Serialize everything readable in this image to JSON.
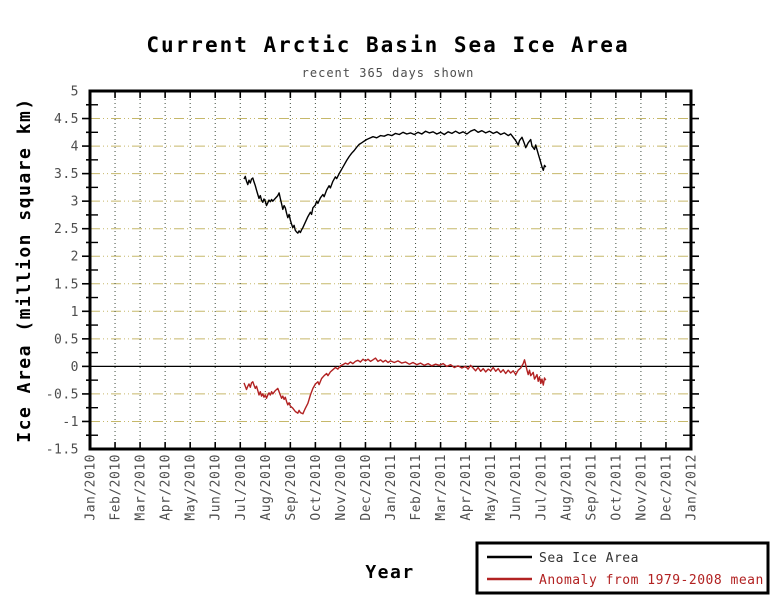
{
  "chart_data": {
    "type": "line",
    "title": "Current Arctic Basin Sea Ice Area",
    "subtitle": "recent 365 days shown",
    "xlabel": "Year",
    "ylabel": "Ice Area (million square km)",
    "x_unit": "months since Jan/2010",
    "xlim": [
      0,
      24
    ],
    "ylim": [
      -1.5,
      5
    ],
    "grid": true,
    "legend_position": "bottom-right",
    "zero_line": true,
    "x_tick_labels": [
      "Jan/2010",
      "Feb/2010",
      "Mar/2010",
      "Apr/2010",
      "May/2010",
      "Jun/2010",
      "Jul/2010",
      "Aug/2010",
      "Sep/2010",
      "Oct/2010",
      "Nov/2010",
      "Dec/2010",
      "Jan/2011",
      "Feb/2011",
      "Mar/2011",
      "Apr/2011",
      "May/2011",
      "Jun/2011",
      "Jul/2011",
      "Aug/2011",
      "Sep/2011",
      "Oct/2011",
      "Nov/2011",
      "Dec/2011",
      "Jan/2012"
    ],
    "y_tick_values": [
      5,
      4.5,
      4,
      3.5,
      3,
      2.5,
      2,
      1.5,
      1,
      0.5,
      0,
      -0.5,
      -1,
      -1.5
    ],
    "y_tick_labels": [
      "5",
      "4.5",
      "4",
      "3.5",
      "3",
      "2.5",
      "2",
      "1.5",
      "1",
      "0.5",
      "0",
      "-0.5",
      "-1",
      "-1.5"
    ],
    "colors": {
      "horizontal_grid": "#c6b86a",
      "vertical_grid": "#3e4d3e",
      "border": "#000000",
      "tick_text": "#4d4d4d"
    },
    "series": [
      {
        "name": "Sea Ice Area",
        "color": "#000000",
        "points": [
          [
            6.15,
            3.4
          ],
          [
            6.2,
            3.45
          ],
          [
            6.25,
            3.36
          ],
          [
            6.3,
            3.3
          ],
          [
            6.35,
            3.38
          ],
          [
            6.4,
            3.33
          ],
          [
            6.45,
            3.4
          ],
          [
            6.5,
            3.42
          ],
          [
            6.55,
            3.35
          ],
          [
            6.6,
            3.28
          ],
          [
            6.65,
            3.2
          ],
          [
            6.7,
            3.12
          ],
          [
            6.75,
            3.05
          ],
          [
            6.8,
            3.1
          ],
          [
            6.85,
            3.02
          ],
          [
            6.9,
            2.98
          ],
          [
            6.95,
            3.04
          ],
          [
            7.0,
            3.0
          ],
          [
            7.05,
            2.92
          ],
          [
            7.1,
            2.97
          ],
          [
            7.15,
            3.02
          ],
          [
            7.2,
            2.99
          ],
          [
            7.25,
            3.03
          ],
          [
            7.3,
            3.0
          ],
          [
            7.4,
            3.05
          ],
          [
            7.5,
            3.1
          ],
          [
            7.55,
            3.15
          ],
          [
            7.6,
            3.05
          ],
          [
            7.65,
            2.95
          ],
          [
            7.7,
            2.85
          ],
          [
            7.75,
            2.92
          ],
          [
            7.8,
            2.88
          ],
          [
            7.85,
            2.78
          ],
          [
            7.9,
            2.7
          ],
          [
            7.95,
            2.76
          ],
          [
            8.0,
            2.66
          ],
          [
            8.05,
            2.58
          ],
          [
            8.1,
            2.52
          ],
          [
            8.15,
            2.56
          ],
          [
            8.2,
            2.47
          ],
          [
            8.25,
            2.44
          ],
          [
            8.3,
            2.42
          ],
          [
            8.35,
            2.46
          ],
          [
            8.4,
            2.43
          ],
          [
            8.45,
            2.48
          ],
          [
            8.5,
            2.52
          ],
          [
            8.6,
            2.62
          ],
          [
            8.7,
            2.72
          ],
          [
            8.8,
            2.8
          ],
          [
            8.85,
            2.76
          ],
          [
            8.9,
            2.88
          ],
          [
            9.0,
            2.93
          ],
          [
            9.05,
            3.0
          ],
          [
            9.1,
            2.96
          ],
          [
            9.2,
            3.06
          ],
          [
            9.3,
            3.12
          ],
          [
            9.35,
            3.08
          ],
          [
            9.45,
            3.2
          ],
          [
            9.55,
            3.28
          ],
          [
            9.6,
            3.24
          ],
          [
            9.7,
            3.36
          ],
          [
            9.8,
            3.44
          ],
          [
            9.85,
            3.41
          ],
          [
            9.95,
            3.5
          ],
          [
            10.05,
            3.58
          ],
          [
            10.15,
            3.66
          ],
          [
            10.25,
            3.74
          ],
          [
            10.35,
            3.81
          ],
          [
            10.45,
            3.87
          ],
          [
            10.55,
            3.92
          ],
          [
            10.65,
            3.98
          ],
          [
            10.75,
            4.03
          ],
          [
            10.85,
            4.06
          ],
          [
            10.95,
            4.09
          ],
          [
            11.05,
            4.12
          ],
          [
            11.15,
            4.14
          ],
          [
            11.3,
            4.17
          ],
          [
            11.45,
            4.15
          ],
          [
            11.6,
            4.19
          ],
          [
            11.75,
            4.18
          ],
          [
            11.9,
            4.21
          ],
          [
            12.05,
            4.19
          ],
          [
            12.2,
            4.23
          ],
          [
            12.35,
            4.21
          ],
          [
            12.5,
            4.25
          ],
          [
            12.65,
            4.22
          ],
          [
            12.8,
            4.24
          ],
          [
            12.95,
            4.21
          ],
          [
            13.1,
            4.25
          ],
          [
            13.25,
            4.22
          ],
          [
            13.4,
            4.27
          ],
          [
            13.55,
            4.24
          ],
          [
            13.7,
            4.26
          ],
          [
            13.85,
            4.22
          ],
          [
            14.0,
            4.25
          ],
          [
            14.15,
            4.21
          ],
          [
            14.3,
            4.26
          ],
          [
            14.45,
            4.23
          ],
          [
            14.6,
            4.27
          ],
          [
            14.75,
            4.23
          ],
          [
            14.9,
            4.26
          ],
          [
            15.05,
            4.22
          ],
          [
            15.2,
            4.27
          ],
          [
            15.35,
            4.3
          ],
          [
            15.5,
            4.25
          ],
          [
            15.65,
            4.28
          ],
          [
            15.8,
            4.24
          ],
          [
            15.95,
            4.27
          ],
          [
            16.1,
            4.23
          ],
          [
            16.25,
            4.26
          ],
          [
            16.4,
            4.21
          ],
          [
            16.55,
            4.24
          ],
          [
            16.7,
            4.19
          ],
          [
            16.8,
            4.22
          ],
          [
            16.9,
            4.16
          ],
          [
            17.0,
            4.1
          ],
          [
            17.1,
            4.02
          ],
          [
            17.15,
            4.1
          ],
          [
            17.25,
            4.16
          ],
          [
            17.35,
            4.04
          ],
          [
            17.4,
            3.97
          ],
          [
            17.5,
            4.06
          ],
          [
            17.6,
            4.12
          ],
          [
            17.65,
            4.0
          ],
          [
            17.75,
            3.94
          ],
          [
            17.8,
            4.02
          ],
          [
            17.9,
            3.86
          ],
          [
            17.95,
            3.78
          ],
          [
            18.0,
            3.7
          ],
          [
            18.05,
            3.62
          ],
          [
            18.1,
            3.56
          ],
          [
            18.15,
            3.65
          ],
          [
            18.2,
            3.62
          ]
        ]
      },
      {
        "name": "Anomaly from 1979-2008 mean",
        "color": "#b22222",
        "points": [
          [
            6.15,
            -0.3
          ],
          [
            6.2,
            -0.36
          ],
          [
            6.25,
            -0.42
          ],
          [
            6.3,
            -0.36
          ],
          [
            6.35,
            -0.32
          ],
          [
            6.4,
            -0.38
          ],
          [
            6.45,
            -0.3
          ],
          [
            6.5,
            -0.28
          ],
          [
            6.55,
            -0.34
          ],
          [
            6.6,
            -0.4
          ],
          [
            6.65,
            -0.36
          ],
          [
            6.7,
            -0.44
          ],
          [
            6.75,
            -0.52
          ],
          [
            6.8,
            -0.46
          ],
          [
            6.85,
            -0.54
          ],
          [
            6.9,
            -0.5
          ],
          [
            6.95,
            -0.56
          ],
          [
            7.0,
            -0.52
          ],
          [
            7.05,
            -0.58
          ],
          [
            7.1,
            -0.52
          ],
          [
            7.15,
            -0.48
          ],
          [
            7.2,
            -0.52
          ],
          [
            7.25,
            -0.46
          ],
          [
            7.3,
            -0.5
          ],
          [
            7.4,
            -0.44
          ],
          [
            7.5,
            -0.4
          ],
          [
            7.55,
            -0.46
          ],
          [
            7.6,
            -0.52
          ],
          [
            7.65,
            -0.58
          ],
          [
            7.7,
            -0.54
          ],
          [
            7.75,
            -0.6
          ],
          [
            7.8,
            -0.56
          ],
          [
            7.85,
            -0.64
          ],
          [
            7.9,
            -0.7
          ],
          [
            7.95,
            -0.66
          ],
          [
            8.0,
            -0.72
          ],
          [
            8.1,
            -0.76
          ],
          [
            8.2,
            -0.82
          ],
          [
            8.3,
            -0.85
          ],
          [
            8.35,
            -0.8
          ],
          [
            8.4,
            -0.84
          ],
          [
            8.5,
            -0.86
          ],
          [
            8.55,
            -0.81
          ],
          [
            8.6,
            -0.76
          ],
          [
            8.7,
            -0.67
          ],
          [
            8.8,
            -0.52
          ],
          [
            8.9,
            -0.4
          ],
          [
            9.0,
            -0.32
          ],
          [
            9.1,
            -0.28
          ],
          [
            9.15,
            -0.33
          ],
          [
            9.25,
            -0.22
          ],
          [
            9.35,
            -0.17
          ],
          [
            9.45,
            -0.13
          ],
          [
            9.5,
            -0.17
          ],
          [
            9.6,
            -0.1
          ],
          [
            9.7,
            -0.06
          ],
          [
            9.8,
            -0.02
          ],
          [
            9.9,
            -0.05
          ],
          [
            10.0,
            0.01
          ],
          [
            10.1,
            0.03
          ],
          [
            10.2,
            0.06
          ],
          [
            10.3,
            0.04
          ],
          [
            10.4,
            0.08
          ],
          [
            10.5,
            0.05
          ],
          [
            10.6,
            0.09
          ],
          [
            10.7,
            0.11
          ],
          [
            10.8,
            0.08
          ],
          [
            10.9,
            0.13
          ],
          [
            11.0,
            0.1
          ],
          [
            11.1,
            0.13
          ],
          [
            11.2,
            0.09
          ],
          [
            11.3,
            0.12
          ],
          [
            11.4,
            0.15
          ],
          [
            11.5,
            0.09
          ],
          [
            11.6,
            0.12
          ],
          [
            11.7,
            0.08
          ],
          [
            11.8,
            0.11
          ],
          [
            11.9,
            0.07
          ],
          [
            12.0,
            0.1
          ],
          [
            12.15,
            0.07
          ],
          [
            12.3,
            0.1
          ],
          [
            12.45,
            0.06
          ],
          [
            12.6,
            0.08
          ],
          [
            12.75,
            0.04
          ],
          [
            12.9,
            0.07
          ],
          [
            13.05,
            0.03
          ],
          [
            13.2,
            0.06
          ],
          [
            13.35,
            0.02
          ],
          [
            13.5,
            0.05
          ],
          [
            13.65,
            0.01
          ],
          [
            13.8,
            0.04
          ],
          [
            13.95,
            0.02
          ],
          [
            14.1,
            0.05
          ],
          [
            14.25,
            0.0
          ],
          [
            14.4,
            0.03
          ],
          [
            14.55,
            -0.02
          ],
          [
            14.7,
            0.01
          ],
          [
            14.85,
            -0.03
          ],
          [
            15.0,
            0.0
          ],
          [
            15.1,
            -0.05
          ],
          [
            15.2,
            0.02
          ],
          [
            15.3,
            -0.03
          ],
          [
            15.4,
            -0.08
          ],
          [
            15.5,
            -0.02
          ],
          [
            15.6,
            -0.09
          ],
          [
            15.7,
            -0.04
          ],
          [
            15.8,
            -0.1
          ],
          [
            15.9,
            -0.05
          ],
          [
            16.0,
            -0.08
          ],
          [
            16.1,
            -0.02
          ],
          [
            16.2,
            -0.09
          ],
          [
            16.3,
            -0.04
          ],
          [
            16.4,
            -0.11
          ],
          [
            16.5,
            -0.06
          ],
          [
            16.6,
            -0.13
          ],
          [
            16.7,
            -0.07
          ],
          [
            16.8,
            -0.12
          ],
          [
            16.9,
            -0.08
          ],
          [
            17.0,
            -0.15
          ],
          [
            17.1,
            -0.07
          ],
          [
            17.2,
            -0.03
          ],
          [
            17.3,
            0.05
          ],
          [
            17.35,
            0.12
          ],
          [
            17.4,
            0.03
          ],
          [
            17.45,
            -0.07
          ],
          [
            17.5,
            -0.15
          ],
          [
            17.55,
            -0.07
          ],
          [
            17.6,
            -0.17
          ],
          [
            17.7,
            -0.11
          ],
          [
            17.75,
            -0.23
          ],
          [
            17.85,
            -0.15
          ],
          [
            17.9,
            -0.27
          ],
          [
            17.95,
            -0.19
          ],
          [
            18.0,
            -0.31
          ],
          [
            18.05,
            -0.23
          ],
          [
            18.1,
            -0.34
          ],
          [
            18.15,
            -0.21
          ],
          [
            18.2,
            -0.25
          ]
        ]
      }
    ]
  }
}
